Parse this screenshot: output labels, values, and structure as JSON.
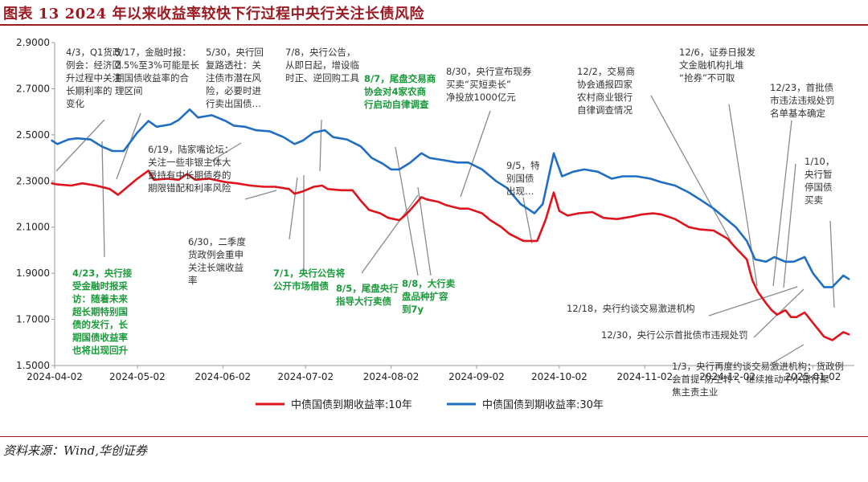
{
  "header": {
    "title": "图表 13   2024 年以来收益率较快下行过程中央行关注长债风险"
  },
  "footer": {
    "source": "资料来源：Wind,华创证券"
  },
  "colors": {
    "brand": "#9b1b23",
    "series_10y": "#e0131b",
    "series_30y": "#1f6ec3",
    "annotation_black": "#333333",
    "annotation_green": "#1a9a3a",
    "axis": "#9a9a9a"
  },
  "chart_data": {
    "type": "line",
    "title": "2024 年以来收益率较快下行过程中央行关注长债风险",
    "xlabel": "",
    "ylabel": "",
    "ylim": [
      1.5,
      2.9
    ],
    "yticks": [
      1.5,
      1.7,
      1.9,
      2.1,
      2.3,
      2.5,
      2.7,
      2.9
    ],
    "ytick_labels": [
      "1.5000",
      "1.7000",
      "1.9000",
      "2.1000",
      "2.3000",
      "2.5000",
      "2.7000",
      "2.9000"
    ],
    "xlim": [
      "2024-04-02",
      "2025-01-17"
    ],
    "xticks": [
      "2024-04-02",
      "2024-05-02",
      "2024-06-02",
      "2024-07-02",
      "2024-08-02",
      "2024-09-02",
      "2024-10-02",
      "2024-11-02",
      "2024-12-02",
      "2025-01-02"
    ],
    "legend_position": "bottom-center",
    "series": [
      {
        "name": "中债国债到期收益率:10年",
        "color": "#e0131b",
        "points": [
          [
            "2024-04-01",
            2.29
          ],
          [
            "2024-04-03",
            2.285
          ],
          [
            "2024-04-08",
            2.28
          ],
          [
            "2024-04-12",
            2.29
          ],
          [
            "2024-04-17",
            2.28
          ],
          [
            "2024-04-22",
            2.265
          ],
          [
            "2024-04-25",
            2.24
          ],
          [
            "2024-04-29",
            2.28
          ],
          [
            "2024-05-02",
            2.31
          ],
          [
            "2024-05-06",
            2.345
          ],
          [
            "2024-05-08",
            2.305
          ],
          [
            "2024-05-13",
            2.31
          ],
          [
            "2024-05-17",
            2.305
          ],
          [
            "2024-05-20",
            2.33
          ],
          [
            "2024-05-23",
            2.305
          ],
          [
            "2024-05-28",
            2.31
          ],
          [
            "2024-06-03",
            2.295
          ],
          [
            "2024-06-07",
            2.29
          ],
          [
            "2024-06-12",
            2.28
          ],
          [
            "2024-06-17",
            2.275
          ],
          [
            "2024-06-21",
            2.275
          ],
          [
            "2024-06-26",
            2.265
          ],
          [
            "2024-06-28",
            2.245
          ],
          [
            "2024-07-01",
            2.255
          ],
          [
            "2024-07-05",
            2.275
          ],
          [
            "2024-07-08",
            2.28
          ],
          [
            "2024-07-10",
            2.265
          ],
          [
            "2024-07-15",
            2.26
          ],
          [
            "2024-07-19",
            2.26
          ],
          [
            "2024-07-22",
            2.215
          ],
          [
            "2024-07-25",
            2.175
          ],
          [
            "2024-07-29",
            2.16
          ],
          [
            "2024-08-01",
            2.14
          ],
          [
            "2024-08-05",
            2.13
          ],
          [
            "2024-08-07",
            2.15
          ],
          [
            "2024-08-09",
            2.175
          ],
          [
            "2024-08-13",
            2.23
          ],
          [
            "2024-08-15",
            2.22
          ],
          [
            "2024-08-19",
            2.21
          ],
          [
            "2024-08-22",
            2.195
          ],
          [
            "2024-08-27",
            2.18
          ],
          [
            "2024-08-30",
            2.18
          ],
          [
            "2024-09-04",
            2.16
          ],
          [
            "2024-09-07",
            2.13
          ],
          [
            "2024-09-11",
            2.1
          ],
          [
            "2024-09-14",
            2.07
          ],
          [
            "2024-09-19",
            2.04
          ],
          [
            "2024-09-24",
            2.04
          ],
          [
            "2024-09-27",
            2.13
          ],
          [
            "2024-09-30",
            2.25
          ],
          [
            "2024-10-02",
            2.17
          ],
          [
            "2024-10-05",
            2.15
          ],
          [
            "2024-10-09",
            2.16
          ],
          [
            "2024-10-14",
            2.165
          ],
          [
            "2024-10-18",
            2.14
          ],
          [
            "2024-10-23",
            2.135
          ],
          [
            "2024-10-28",
            2.145
          ],
          [
            "2024-11-01",
            2.155
          ],
          [
            "2024-11-05",
            2.16
          ],
          [
            "2024-11-08",
            2.155
          ],
          [
            "2024-11-13",
            2.135
          ],
          [
            "2024-11-18",
            2.1
          ],
          [
            "2024-11-22",
            2.09
          ],
          [
            "2024-11-27",
            2.085
          ],
          [
            "2024-12-02",
            2.05
          ],
          [
            "2024-12-05",
            2.01
          ],
          [
            "2024-12-09",
            1.96
          ],
          [
            "2024-12-11",
            1.87
          ],
          [
            "2024-12-13",
            1.82
          ],
          [
            "2024-12-16",
            1.77
          ],
          [
            "2024-12-18",
            1.74
          ],
          [
            "2024-12-20",
            1.72
          ],
          [
            "2024-12-23",
            1.74
          ],
          [
            "2024-12-25",
            1.71
          ],
          [
            "2024-12-27",
            1.71
          ],
          [
            "2024-12-30",
            1.73
          ],
          [
            "2025-01-02",
            1.685
          ],
          [
            "2025-01-06",
            1.625
          ],
          [
            "2025-01-09",
            1.61
          ],
          [
            "2025-01-13",
            1.645
          ],
          [
            "2025-01-15",
            1.635
          ]
        ]
      },
      {
        "name": "中债国债到期收益率:30年",
        "color": "#1f6ec3",
        "points": [
          [
            "2024-04-01",
            2.475
          ],
          [
            "2024-04-03",
            2.46
          ],
          [
            "2024-04-07",
            2.48
          ],
          [
            "2024-04-10",
            2.485
          ],
          [
            "2024-04-15",
            2.48
          ],
          [
            "2024-04-19",
            2.45
          ],
          [
            "2024-04-23",
            2.43
          ],
          [
            "2024-04-27",
            2.43
          ],
          [
            "2024-05-02",
            2.51
          ],
          [
            "2024-05-06",
            2.56
          ],
          [
            "2024-05-09",
            2.535
          ],
          [
            "2024-05-14",
            2.545
          ],
          [
            "2024-05-17",
            2.565
          ],
          [
            "2024-05-21",
            2.61
          ],
          [
            "2024-05-24",
            2.575
          ],
          [
            "2024-05-29",
            2.585
          ],
          [
            "2024-06-03",
            2.56
          ],
          [
            "2024-06-06",
            2.54
          ],
          [
            "2024-06-10",
            2.535
          ],
          [
            "2024-06-14",
            2.52
          ],
          [
            "2024-06-19",
            2.515
          ],
          [
            "2024-06-24",
            2.49
          ],
          [
            "2024-06-28",
            2.46
          ],
          [
            "2024-07-01",
            2.475
          ],
          [
            "2024-07-05",
            2.51
          ],
          [
            "2024-07-09",
            2.52
          ],
          [
            "2024-07-12",
            2.49
          ],
          [
            "2024-07-17",
            2.48
          ],
          [
            "2024-07-22",
            2.45
          ],
          [
            "2024-07-26",
            2.4
          ],
          [
            "2024-07-30",
            2.375
          ],
          [
            "2024-08-02",
            2.35
          ],
          [
            "2024-08-05",
            2.35
          ],
          [
            "2024-08-09",
            2.38
          ],
          [
            "2024-08-13",
            2.42
          ],
          [
            "2024-08-16",
            2.4
          ],
          [
            "2024-08-21",
            2.39
          ],
          [
            "2024-08-26",
            2.38
          ],
          [
            "2024-08-30",
            2.38
          ],
          [
            "2024-09-04",
            2.35
          ],
          [
            "2024-09-09",
            2.3
          ],
          [
            "2024-09-13",
            2.27
          ],
          [
            "2024-09-18",
            2.2
          ],
          [
            "2024-09-23",
            2.16
          ],
          [
            "2024-09-26",
            2.2
          ],
          [
            "2024-09-30",
            2.42
          ],
          [
            "2024-10-03",
            2.32
          ],
          [
            "2024-10-07",
            2.34
          ],
          [
            "2024-10-11",
            2.35
          ],
          [
            "2024-10-16",
            2.34
          ],
          [
            "2024-10-21",
            2.31
          ],
          [
            "2024-10-25",
            2.32
          ],
          [
            "2024-10-30",
            2.32
          ],
          [
            "2024-11-04",
            2.31
          ],
          [
            "2024-11-08",
            2.295
          ],
          [
            "2024-11-13",
            2.28
          ],
          [
            "2024-11-18",
            2.25
          ],
          [
            "2024-11-22",
            2.22
          ],
          [
            "2024-11-27",
            2.18
          ],
          [
            "2024-12-02",
            2.13
          ],
          [
            "2024-12-05",
            2.1
          ],
          [
            "2024-12-09",
            2.04
          ],
          [
            "2024-12-12",
            1.96
          ],
          [
            "2024-12-16",
            1.95
          ],
          [
            "2024-12-19",
            1.97
          ],
          [
            "2024-12-23",
            1.95
          ],
          [
            "2024-12-26",
            1.95
          ],
          [
            "2024-12-30",
            1.97
          ],
          [
            "2025-01-02",
            1.9
          ],
          [
            "2025-01-06",
            1.84
          ],
          [
            "2025-01-09",
            1.84
          ],
          [
            "2025-01-13",
            1.89
          ],
          [
            "2025-01-15",
            1.875
          ]
        ]
      }
    ],
    "annotations": [
      {
        "id": "a1",
        "color": "black",
        "text": "4/3，Q1货政例会：经济回升过程中关注长期利率的变化",
        "lines": [
          "4/3，Q1货政",
          "例会：经济回",
          "升过程中关注",
          "长期利率的",
          "变化"
        ]
      },
      {
        "id": "a2",
        "color": "black",
        "text": "5/17，金融时报：2.5%至3%可能是长期国债收益率的合理区间",
        "lines": [
          "5/17，金融时报：",
          "2.5%至3%可能是长",
          "期国债收益率的合",
          "理区间"
        ]
      },
      {
        "id": "a3",
        "color": "black",
        "text": "5/30，央行回复路透社：关注债市潜在风险，必要时进行卖出国债…",
        "lines": [
          "5/30，央行回",
          "复路透社：关",
          "注债市潜在风",
          "险，必要时进",
          "行卖出国债…"
        ]
      },
      {
        "id": "a4",
        "color": "black",
        "text": "7/8，央行公告，从即日起，增设临时正、逆回购工具",
        "lines": [
          "7/8，央行公告，",
          "从即日起，增设临",
          "时正、逆回购工具"
        ]
      },
      {
        "id": "a5",
        "color": "green",
        "text": "8/7，尾盘交易商协会对4家农商行启动自律调查",
        "lines": [
          "8/7，尾盘交易商",
          "协会对4家农商",
          "行启动自律调查"
        ]
      },
      {
        "id": "a6",
        "color": "black",
        "text": "8/30，央行宣布现券买卖“买短卖长”净投放1000亿元",
        "lines": [
          "8/30，央行宣布现券",
          "买卖“买短卖长”",
          "净投放1000亿元"
        ]
      },
      {
        "id": "a7",
        "color": "black",
        "text": "12/2，交易商协会通报四家农村商业银行自律调查情况",
        "lines": [
          "12/2，交易商",
          "协会通报四家",
          "农村商业银行",
          "自律调查情况"
        ]
      },
      {
        "id": "a8",
        "color": "black",
        "text": "12/6，证券日报发文金融机构扎堆“抢券”不可取",
        "lines": [
          "12/6，证券日报发",
          "文金融机构扎堆",
          "“抢券”不可取"
        ]
      },
      {
        "id": "a9",
        "color": "black",
        "text": "12/23，首批债市违法违规处罚名单基本确定",
        "lines": [
          "12/23，首批债",
          "市违法违规处罚",
          "名单基本确定"
        ]
      },
      {
        "id": "a10",
        "color": "black",
        "text": "6/19，陆家嘴论坛：关注一些非银主体大量持有中长期债券的期限错配和利率风险",
        "lines": [
          "6/19，陆家嘴论坛：",
          "关注一些非银主体大",
          "量持有中长期债券的",
          "期限错配和利率风险"
        ]
      },
      {
        "id": "a11",
        "color": "black",
        "text": "9/5，特别国债出现…",
        "lines": [
          "9/5，特",
          "别国债",
          "出现…"
        ]
      },
      {
        "id": "a12",
        "color": "black",
        "text": "1/10，央行暂停国债买卖",
        "lines": [
          "1/10，",
          "央行暂",
          "停国债",
          "买卖"
        ]
      },
      {
        "id": "a13",
        "color": "green",
        "text": "4/23，央行接受金融时报采访：随着未来超长期特别国债的发行，长期国债收益率也将出现回升",
        "lines": [
          "4/23，央行接",
          "受金融时报采",
          "访：随着未来",
          "超长期特别国",
          "债的发行，长",
          "期国债收益率",
          "也将出现回升"
        ]
      },
      {
        "id": "a14",
        "color": "black",
        "text": "6/30，二季度货政例会重申关注长端收益率",
        "lines": [
          "6/30，二季度",
          "货政例会重申",
          "关注长端收益",
          "率"
        ]
      },
      {
        "id": "a15",
        "color": "green",
        "text": "7/1，央行公告将公开市场借债",
        "lines": [
          "7/1，央行公告将",
          "公开市场借债"
        ]
      },
      {
        "id": "a16",
        "color": "green",
        "text": "8/5，尾盘央行指导大行卖债",
        "lines": [
          "8/5，尾盘央行",
          "指导大行卖债"
        ]
      },
      {
        "id": "a17",
        "color": "green",
        "text": "8/8，大行卖盘品种扩容到7y",
        "lines": [
          "8/8，大行卖",
          "盘品种扩容",
          "到7y"
        ]
      },
      {
        "id": "a18",
        "color": "black",
        "text": "12/18，央行约谈交易激进机构",
        "lines": [
          "12/18，央行约谈交易激进机构"
        ]
      },
      {
        "id": "a19",
        "color": "black",
        "text": "12/30，央行公示首批债市违规处罚",
        "lines": [
          "12/30，央行公示首批债市违规处罚"
        ]
      },
      {
        "id": "a20",
        "color": "black",
        "text": "1/3，央行再度约谈交易激进机构；货政例会首提“防空转”、继续推动中小银行聚焦主责主业",
        "lines": [
          "1/3，央行再度约谈交易激进机构；货政例",
          "会首提“防空转”、继续推动中小银行聚",
          "焦主责主业"
        ]
      }
    ]
  }
}
